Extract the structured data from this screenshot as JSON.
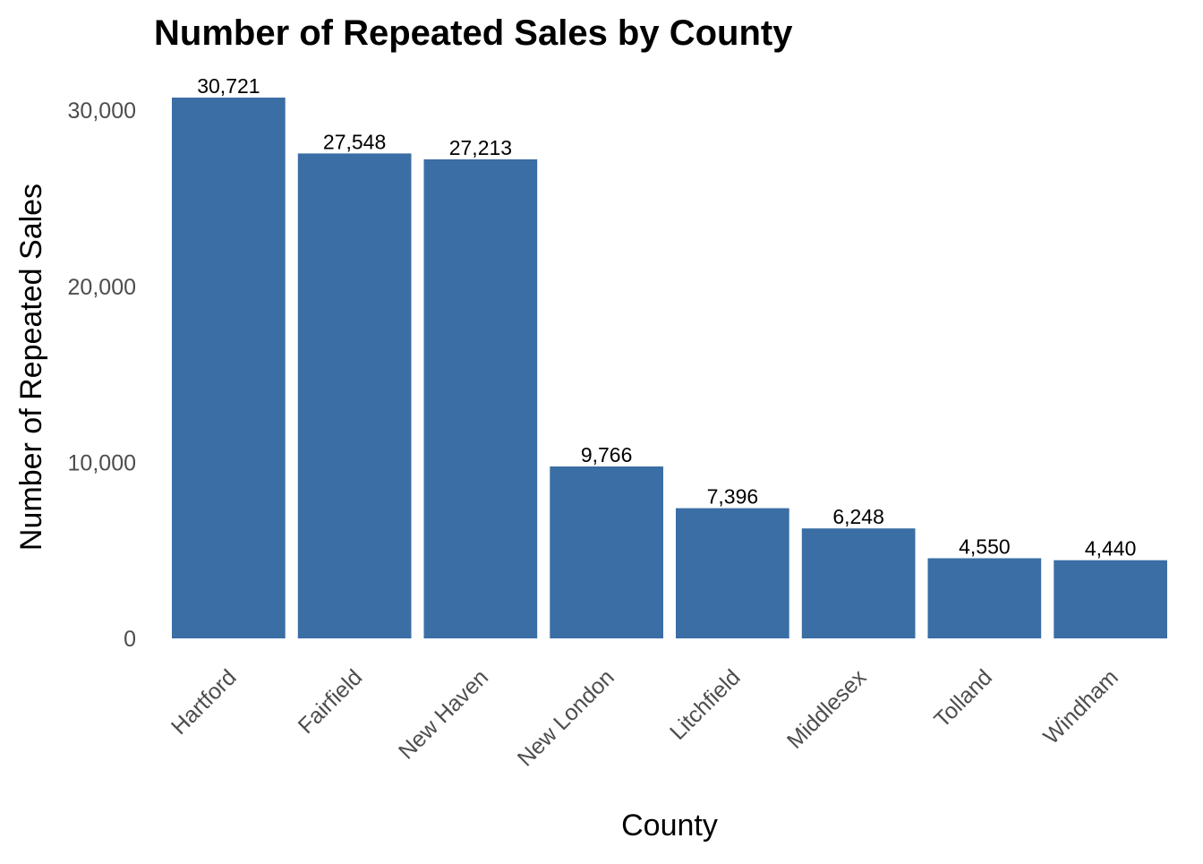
{
  "chart_data": {
    "type": "bar",
    "title": "Number of Repeated Sales by County",
    "xlabel": "County",
    "ylabel": "Number of Repeated Sales",
    "categories": [
      "Hartford",
      "Fairfield",
      "New Haven",
      "New London",
      "Litchfield",
      "Middlesex",
      "Tolland",
      "Windham"
    ],
    "values": [
      30721,
      27548,
      27213,
      9766,
      7396,
      6248,
      4550,
      4440
    ],
    "value_labels": [
      "30,721",
      "27,548",
      "27,213",
      "9,766",
      "7,396",
      "6,248",
      "4,550",
      "4,440"
    ],
    "ylim": [
      0,
      30721
    ],
    "yticks": [
      0,
      10000,
      20000,
      30000
    ],
    "ytick_labels": [
      "0",
      "10,000",
      "20,000",
      "30,000"
    ],
    "grid": false,
    "legend": "none",
    "bar_color": "#3a6ea5"
  }
}
